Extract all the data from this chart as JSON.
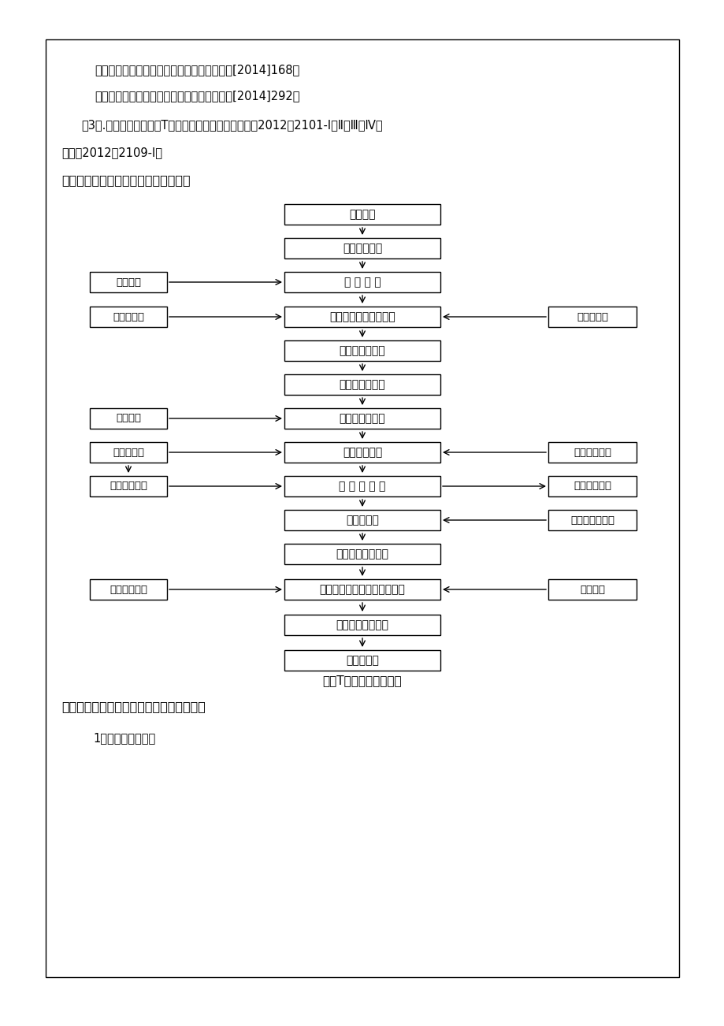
{
  "page_bg": "#ffffff",
  "border_color": "#000000",
  "box_color": "#ffffff",
  "box_edge": "#000000",
  "text_color": "#000000",
  "header_line1": "《铁路建设项目安全生产管理办法》铁总建设[2014]168号",
  "header_line2": "《铁路建设项目工程质量管理办法》铁总建设[2014]292号",
  "header_line3": "（3）.《预制后张法简支T梁（角钐支架方案）》通图（2012）2101-Ⅰ、Ⅱ、Ⅲ、Ⅳ及",
  "header_line4": "通图（2012）2109-Ⅰ。",
  "section_title": "四、施工工艺流程及及施工先后顺序：",
  "main_boxes": [
    "施工准备",
    "制梁台座设置",
    "校 正 底 模",
    "安装腹板及横隔板钓筋",
    "端模安装、校正",
    "侧模安装、校正",
    "安装桥面板钓筋",
    "紧固模板夹具",
    "灌 注 混 凝 土",
    "养护、拆模",
    "钐给线下料、穿束",
    "张拉预应力束（初张、终张）",
    "压浆、封锁、养护",
    "吸梁、存梁"
  ],
  "caption": "预制T梁施工工艺流程图",
  "footer_title": "五、施工工艺细则、操作要点及质量标准：",
  "footer_line": "1、碎石桦施工细则",
  "left_box_texts": [
    "质量检查",
    "预埋件安装",
    "质量检查",
    "原材料检验",
    "砣拌制、运输",
    "校验张拉设备"
  ],
  "right_box_texts": [
    "安装橡胶棒",
    "模板尺寸检查",
    "制混凝土试块",
    "取样、抗压试验",
    "抗压试验"
  ]
}
